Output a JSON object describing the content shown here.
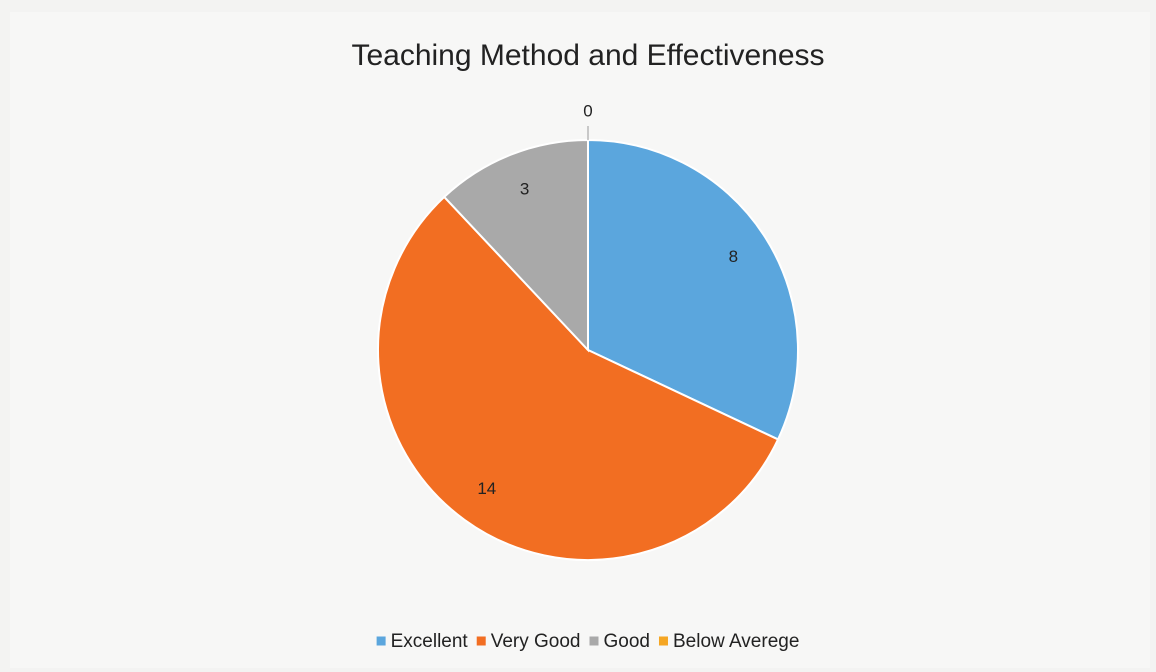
{
  "chart_data": {
    "type": "pie",
    "title": "Teaching Method and Effectiveness",
    "categories": [
      "Excellent",
      "Very Good",
      "Good",
      "Below Averege"
    ],
    "values": [
      8,
      14,
      3,
      0
    ],
    "colors": [
      "#5ba6dd",
      "#f26e22",
      "#a9a9a9",
      "#f5a623"
    ],
    "legend": "bottom"
  }
}
